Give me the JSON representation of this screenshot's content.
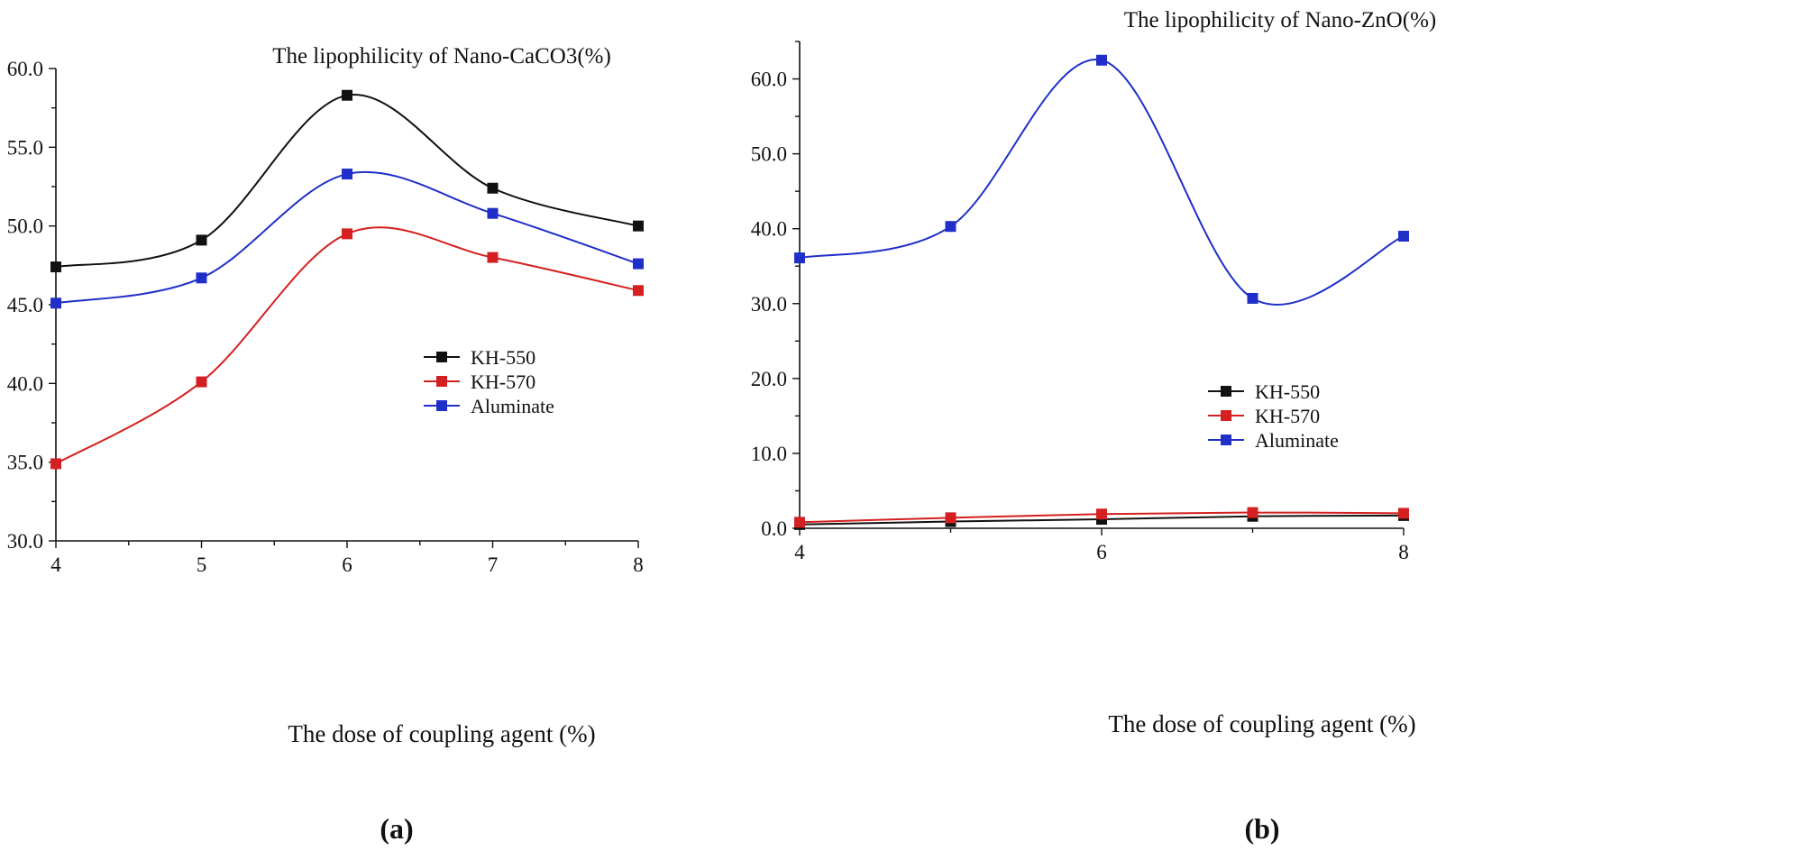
{
  "chart_data": [
    {
      "type": "line",
      "panel_label": "(a)",
      "title": "The lipophilicity of Nano-CaCO3(%)",
      "xlabel": "The dose of coupling agent (%)",
      "ylabel": "",
      "x": [
        4,
        5,
        6,
        7,
        8
      ],
      "xlim": [
        4,
        8
      ],
      "ylim": [
        30,
        60
      ],
      "xticks": [
        "4",
        "5",
        "6",
        "7",
        "8"
      ],
      "yticks": [
        "30.0",
        "35.0",
        "40.0",
        "45.0",
        "50.0",
        "55.0",
        "60.0"
      ],
      "grid": false,
      "legend_position": "center-right",
      "series": [
        {
          "name": "KH-550",
          "color": "#111111",
          "values": [
            47.4,
            49.1,
            58.3,
            52.4,
            50.0
          ]
        },
        {
          "name": "KH-570",
          "color": "#d42020",
          "values": [
            34.9,
            40.1,
            49.5,
            48.0,
            45.9
          ]
        },
        {
          "name": "Aluminate",
          "color": "#1f2fc8",
          "values": [
            45.1,
            46.7,
            53.3,
            50.8,
            47.6
          ]
        }
      ]
    },
    {
      "type": "line",
      "panel_label": "(b)",
      "title": "The lipophilicity of Nano-ZnO(%)",
      "xlabel": "The dose of coupling agent (%)",
      "ylabel": "",
      "x": [
        4,
        5,
        6,
        7,
        8
      ],
      "xlim": [
        4,
        8
      ],
      "ylim": [
        0,
        65
      ],
      "xticks": [
        "4",
        "6",
        "8"
      ],
      "yticks": [
        "0.0",
        "10.0",
        "20.0",
        "30.0",
        "40.0",
        "50.0",
        "60.0"
      ],
      "grid": false,
      "legend_position": "bottom-right",
      "series": [
        {
          "name": "KH-550",
          "color": "#111111",
          "values": [
            0.5,
            0.9,
            1.2,
            1.6,
            1.7
          ]
        },
        {
          "name": "KH-570",
          "color": "#d42020",
          "values": [
            0.8,
            1.4,
            1.9,
            2.1,
            2.0
          ]
        },
        {
          "name": "Aluminate",
          "color": "#1f2fc8",
          "values": [
            36.1,
            40.3,
            62.5,
            30.7,
            39.0
          ]
        }
      ]
    }
  ]
}
